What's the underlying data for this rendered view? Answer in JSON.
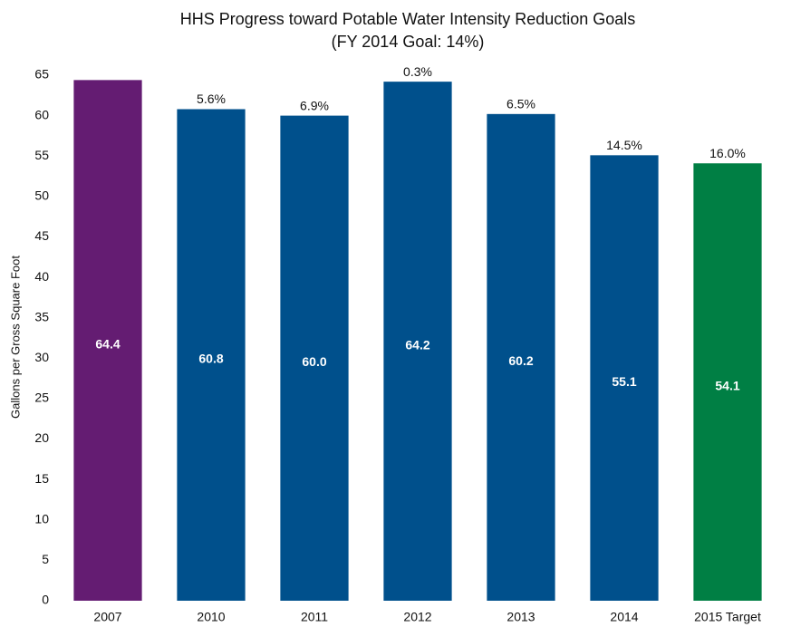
{
  "chart_data": {
    "type": "bar",
    "title": "HHS Progress toward Potable Water Intensity Reduction Goals",
    "subtitle": "(FY 2014 Goal: 14%)",
    "y_label": "Gallons per Gross Square Foot",
    "categories": [
      "2007",
      "2010",
      "2011",
      "2012",
      "2013",
      "2014",
      "2015 Target"
    ],
    "values": [
      64.4,
      60.8,
      60.0,
      64.2,
      60.2,
      55.1,
      54.1
    ],
    "value_labels": [
      "64.4",
      "60.8",
      "60.0",
      "64.2",
      "60.2",
      "55.1",
      "54.1"
    ],
    "annotations": [
      null,
      "5.6%",
      "6.9%",
      "0.3%",
      "6.5%",
      "14.5%",
      "16.0%"
    ],
    "colors": [
      "#641c72",
      "#00508c",
      "#00508c",
      "#00508c",
      "#00508c",
      "#00508c",
      "#007f44"
    ],
    "ylim": [
      0,
      65
    ],
    "yticks": [
      0,
      5,
      10,
      15,
      20,
      25,
      30,
      35,
      40,
      45,
      50,
      55,
      60,
      65
    ],
    "grid": false
  }
}
